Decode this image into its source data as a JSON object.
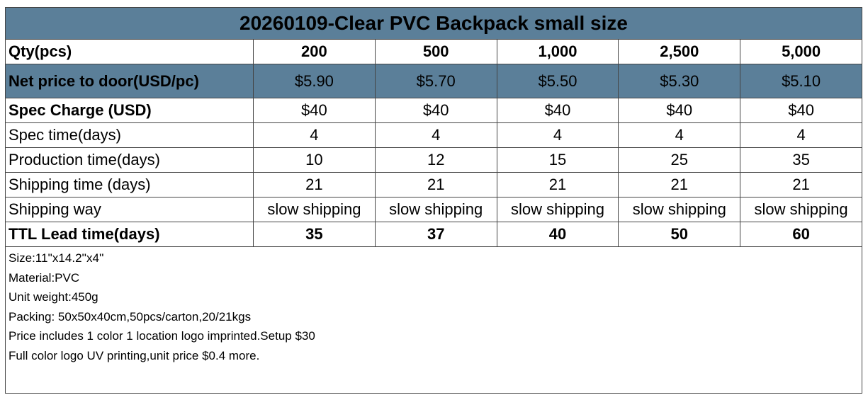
{
  "title": "20260109-Clear PVC Backpack small size",
  "rows": [
    {
      "label": "Qty(pcs)",
      "values": [
        "200",
        "500",
        "1,000",
        "2,500",
        "5,000"
      ]
    },
    {
      "label": "Net price to door(USD/pc)",
      "values": [
        "$5.90",
        "$5.70",
        "$5.50",
        "$5.30",
        "$5.10"
      ]
    },
    {
      "label": "Spec Charge (USD)",
      "values": [
        "$40",
        "$40",
        "$40",
        "$40",
        "$40"
      ]
    },
    {
      "label": "Spec time(days)",
      "values": [
        "4",
        "4",
        "4",
        "4",
        "4"
      ]
    },
    {
      "label": "Production time(days)",
      "values": [
        "10",
        "12",
        "15",
        "25",
        "35"
      ]
    },
    {
      "label": "Shipping time (days)",
      "values": [
        "21",
        "21",
        "21",
        "21",
        "21"
      ]
    },
    {
      "label": "Shipping way",
      "values": [
        "slow shipping",
        "slow shipping",
        "slow shipping",
        "slow shipping",
        "slow shipping"
      ]
    },
    {
      "label": "TTL Lead time(days)",
      "values": [
        "35",
        "37",
        "40",
        "50",
        "60"
      ]
    }
  ],
  "notes": [
    "Size:11''x14.2''x4''",
    "Material:PVC",
    "Unit weight:450g",
    "Packing: 50x50x40cm,50pcs/carton,20/21kgs",
    "Price includes 1 color 1 location logo imprinted.Setup $30",
    "Full color logo UV printing,unit price $0.4 more."
  ]
}
